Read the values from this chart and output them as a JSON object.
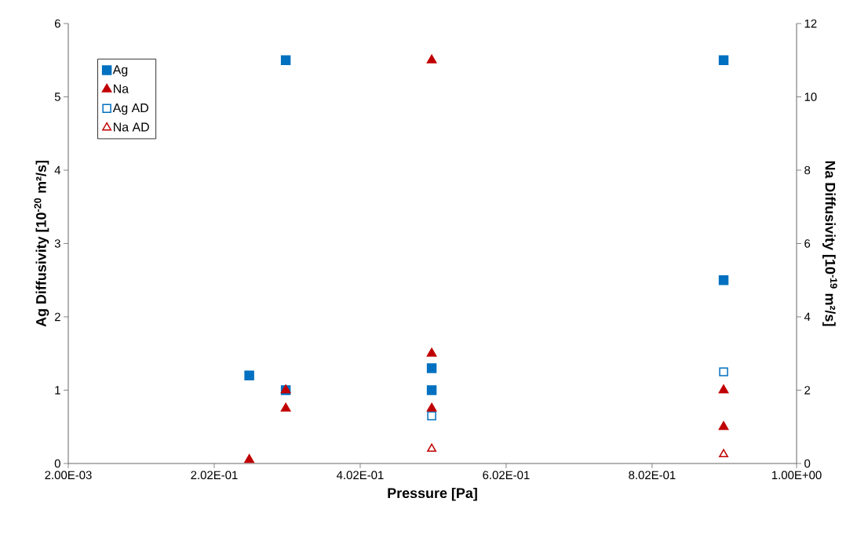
{
  "chart_data": {
    "type": "scatter",
    "xlabel": "Pressure [Pa]",
    "ylabel": "Ag Diffusivity [10$^{-20}$ m²/s]",
    "y2label": "Na Diffusivity [10$^{-19}$ m²/s]",
    "xlim": [
      0.002,
      1.0
    ],
    "xticks": [
      {
        "value": 0.002,
        "label": "2.00E-03"
      },
      {
        "value": 0.202,
        "label": "2.02E-01"
      },
      {
        "value": 0.402,
        "label": "4.02E-01"
      },
      {
        "value": 0.602,
        "label": "6.02E-01"
      },
      {
        "value": 0.802,
        "label": "8.02E-01"
      },
      {
        "value": 1.0,
        "label": "1.00E+00"
      }
    ],
    "ylim": [
      0,
      6
    ],
    "yticks": [
      0,
      1,
      2,
      3,
      4,
      5,
      6
    ],
    "y2lim": [
      0,
      12
    ],
    "y2ticks": [
      0,
      2,
      4,
      6,
      8,
      10,
      12
    ],
    "grid": false,
    "legend": "top left",
    "series": [
      {
        "name": "Ag",
        "color": "#0070c0",
        "marker": "square",
        "x": [
          0.25,
          0.3,
          0.3,
          0.5,
          0.5,
          0.9,
          0.9
        ],
        "values": [
          1.2,
          1.0,
          5.5,
          1.3,
          1.0,
          5.5,
          2.5
        ]
      },
      {
        "name": "Na",
        "color": "#c00000",
        "marker": "triangle",
        "axis": "y2",
        "x": [
          0.25,
          0.3,
          0.3,
          0.5,
          0.5,
          0.5,
          0.9,
          0.9
        ],
        "values": [
          0.1,
          2,
          1.5,
          11,
          3,
          1.5,
          2,
          1
        ]
      },
      {
        "name": "Ag AD",
        "color": "#0070c0",
        "marker": "square",
        "x": [
          0.5,
          0.9
        ],
        "values": [
          0.65,
          1.25
        ]
      },
      {
        "name": "Na AD",
        "color": "#c00000",
        "marker": "triangle",
        "axis": "y2",
        "x": [
          0.5,
          0.9
        ],
        "values": [
          0.4,
          0.25
        ]
      }
    ]
  }
}
